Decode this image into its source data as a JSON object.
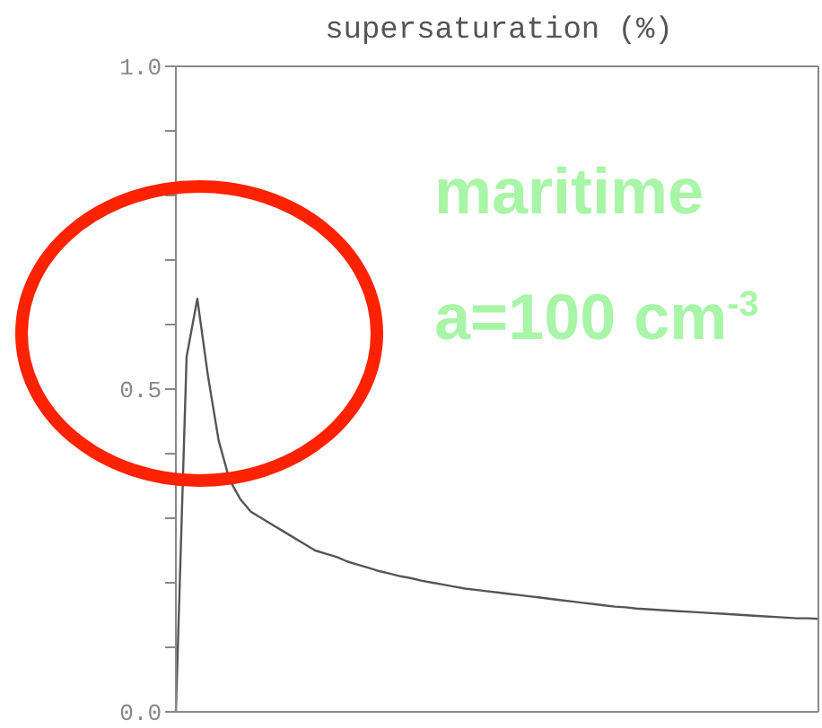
{
  "chart_data": {
    "type": "line",
    "title": "supersaturation (%)",
    "annotations": [
      "maritime",
      "a=100 cm$^{-3}$"
    ],
    "categories": [
      null,
      null,
      null,
      null,
      null,
      null,
      null,
      null,
      null,
      null,
      null,
      null,
      null,
      null,
      null,
      null,
      null,
      null,
      null,
      null,
      null,
      null,
      null,
      null,
      null,
      null,
      null,
      null,
      null,
      null,
      null,
      null,
      null,
      null,
      null,
      null,
      null,
      null,
      null,
      null,
      null,
      null,
      null,
      null,
      null,
      null,
      null,
      null,
      null,
      null,
      null,
      null,
      null,
      null,
      null,
      null,
      null,
      null,
      null,
      null,
      null
    ],
    "series": [
      {
        "color": "#555555",
        "values": [
          0,
          0.55,
          0.64,
          0.52,
          0.42,
          0.36,
          0.33,
          0.31,
          0.3,
          0.29,
          0.28,
          0.27,
          0.26,
          0.25,
          0.245,
          0.24,
          0.233,
          0.228,
          0.223,
          0.218,
          0.214,
          0.21,
          0.207,
          0.203,
          0.2,
          0.197,
          0.194,
          0.191,
          0.189,
          0.187,
          0.185,
          0.183,
          0.181,
          0.179,
          0.177,
          0.175,
          0.173,
          0.171,
          0.169,
          0.167,
          0.165,
          0.163,
          0.162,
          0.16,
          0.159,
          0.158,
          0.157,
          0.156,
          0.155,
          0.154,
          0.153,
          0.152,
          0.151,
          0.15,
          0.149,
          0.148,
          0.147,
          0.146,
          0.145,
          0.145,
          0.144
        ]
      }
    ],
    "ylim": [
      0,
      1
    ],
    "yticks": [
      {
        "value": 0,
        "label": "0.0"
      },
      {
        "value": 0.1,
        "label": null
      },
      {
        "value": 0.2,
        "label": null
      },
      {
        "value": 0.3,
        "label": null
      },
      {
        "value": 0.4,
        "label": null
      },
      {
        "value": 0.5,
        "label": "0.5"
      },
      {
        "value": 0.6,
        "label": null
      },
      {
        "value": 0.7,
        "label": null
      },
      {
        "value": 0.8,
        "label": null
      },
      {
        "value": 0.9,
        "label": null
      },
      {
        "value": 1,
        "label": "1.0"
      }
    ],
    "tick_labels": "y",
    "marker": "none",
    "line_style": "solid"
  }
}
